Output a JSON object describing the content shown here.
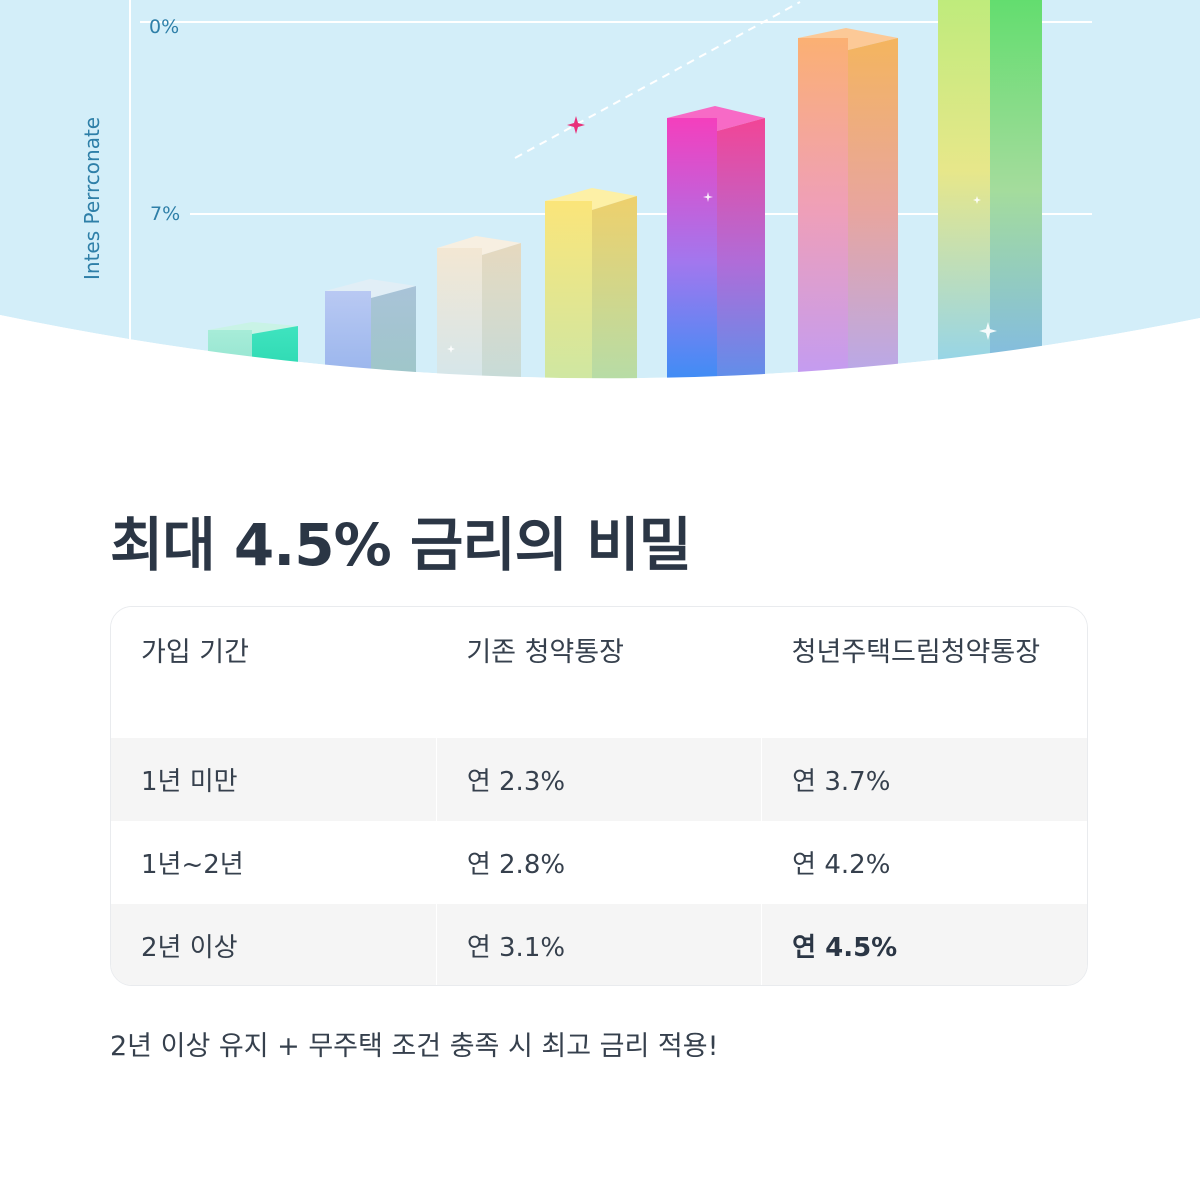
{
  "chart": {
    "axis_label": "Intes Perrconate",
    "tick_labels": [
      "0%",
      "7%"
    ],
    "colors": {
      "sky": "#d3eef9",
      "gridline": "#ffffff",
      "axis_text": "#2e7fa8",
      "sparkle": "#e8317a"
    }
  },
  "headline": "최대 4.5% 금리의 비밀",
  "table": {
    "headers": [
      "가입 기간",
      "기존 청약통장",
      "청년주택드림청약통장"
    ],
    "rows": [
      {
        "period": "1년 미만",
        "old_rate": "연 2.3%",
        "new_rate": "연 3.7%"
      },
      {
        "period": "1년~2년",
        "old_rate": "연 2.8%",
        "new_rate": "연 4.2%"
      },
      {
        "period": "2년 이상",
        "old_rate": "연 3.1%",
        "new_rate": "연 4.5%"
      }
    ]
  },
  "footnote": "2년 이상 유지 + 무주택 조건 충족 시 최고 금리 적용!"
}
